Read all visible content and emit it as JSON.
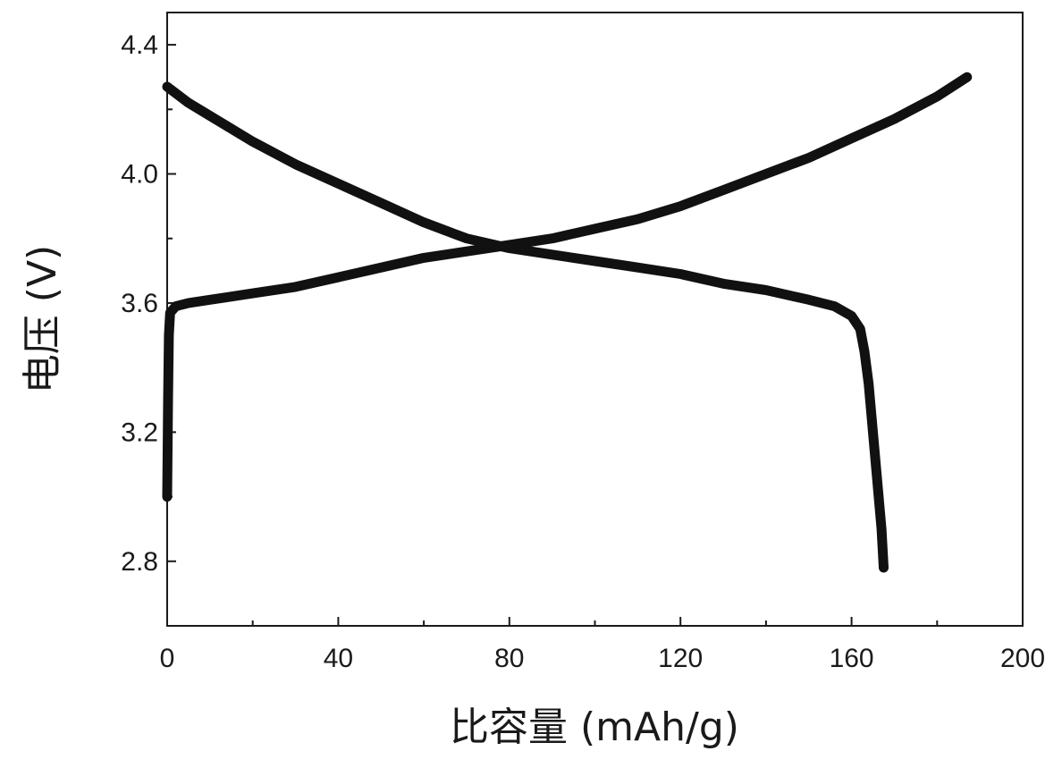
{
  "chart_data": {
    "type": "line",
    "xlabel": "比容量 (mAh/g)",
    "ylabel": "电压 (V)",
    "xlim": [
      0,
      200
    ],
    "ylim": [
      2.6,
      4.5
    ],
    "xticks": [
      0,
      40,
      80,
      120,
      160,
      200
    ],
    "xtick_labels": [
      "0",
      "40",
      "80",
      "120",
      "160",
      "200"
    ],
    "yticks": [
      2.8,
      3.2,
      3.6,
      4.0,
      4.4
    ],
    "ytick_labels": [
      "2.8",
      "3.2",
      "3.6",
      "4.0",
      "4.4"
    ],
    "grid": false,
    "line_color": "#111111",
    "series": [
      {
        "points": [
          [
            0,
            3.0
          ],
          [
            0.2,
            3.3
          ],
          [
            0.4,
            3.5
          ],
          [
            0.7,
            3.57
          ],
          [
            2,
            3.59
          ],
          [
            5,
            3.6
          ],
          [
            10,
            3.61
          ],
          [
            20,
            3.63
          ],
          [
            30,
            3.65
          ],
          [
            40,
            3.68
          ],
          [
            50,
            3.71
          ],
          [
            60,
            3.74
          ],
          [
            70,
            3.76
          ],
          [
            80,
            3.78
          ],
          [
            90,
            3.8
          ],
          [
            100,
            3.83
          ],
          [
            110,
            3.86
          ],
          [
            120,
            3.9
          ],
          [
            130,
            3.95
          ],
          [
            140,
            4.0
          ],
          [
            150,
            4.05
          ],
          [
            160,
            4.11
          ],
          [
            170,
            4.17
          ],
          [
            180,
            4.24
          ],
          [
            187,
            4.3
          ]
        ]
      },
      {
        "points": [
          [
            0,
            4.27
          ],
          [
            5,
            4.22
          ],
          [
            10,
            4.18
          ],
          [
            20,
            4.1
          ],
          [
            30,
            4.03
          ],
          [
            40,
            3.97
          ],
          [
            50,
            3.91
          ],
          [
            60,
            3.85
          ],
          [
            70,
            3.8
          ],
          [
            80,
            3.77
          ],
          [
            90,
            3.75
          ],
          [
            100,
            3.73
          ],
          [
            110,
            3.71
          ],
          [
            120,
            3.69
          ],
          [
            130,
            3.66
          ],
          [
            140,
            3.64
          ],
          [
            150,
            3.61
          ],
          [
            156,
            3.59
          ],
          [
            160,
            3.56
          ],
          [
            162,
            3.52
          ],
          [
            163,
            3.45
          ],
          [
            164,
            3.35
          ],
          [
            165,
            3.2
          ],
          [
            166,
            3.05
          ],
          [
            167,
            2.9
          ],
          [
            167.5,
            2.78
          ]
        ]
      }
    ]
  }
}
